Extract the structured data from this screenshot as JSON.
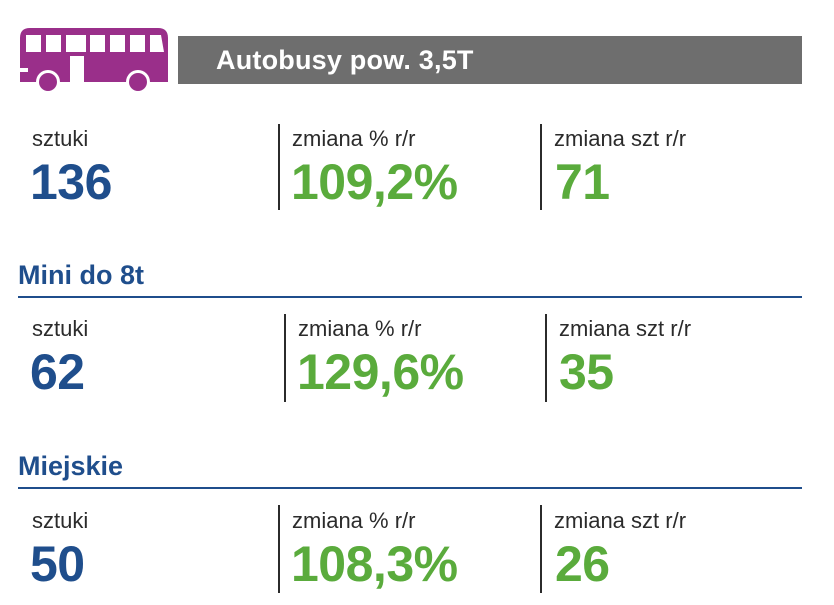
{
  "header": {
    "title": "Autobusy pow. 3,5T"
  },
  "colors": {
    "accent_purple": "#9a2f8a",
    "header_gray": "#6e6e6e",
    "blue": "#1f4e8c",
    "green": "#5aab3c"
  },
  "sections": [
    {
      "title": "",
      "labels": [
        "sztuki",
        "zmiana % r/r",
        "zmiana szt r/r"
      ],
      "values": [
        "136",
        "109,2%",
        "71"
      ]
    },
    {
      "title": "Mini do 8t",
      "labels": [
        "sztuki",
        "zmiana % r/r",
        "zmiana szt r/r"
      ],
      "values": [
        "62",
        "129,6%",
        "35"
      ]
    },
    {
      "title": "Miejskie",
      "labels": [
        "sztuki",
        "zmiana % r/r",
        "zmiana szt r/r"
      ],
      "values": [
        "50",
        "108,3%",
        "26"
      ]
    }
  ]
}
